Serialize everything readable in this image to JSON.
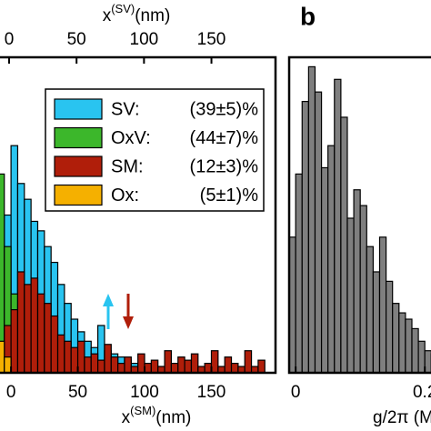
{
  "chart_data": [
    {
      "type": "histogram",
      "x_label": {
        "base": "x",
        "sup": "(SM)",
        "unit": "(nm)"
      },
      "top_x_label": {
        "base": "x",
        "sup": "(SV)",
        "unit": "(nm)"
      },
      "bins": [
        -10,
        -5,
        0,
        5,
        10,
        15,
        20,
        25,
        30,
        35,
        40,
        45,
        50,
        55,
        60,
        65,
        70,
        75,
        80,
        85,
        90,
        95,
        100,
        105,
        110,
        115,
        120,
        125,
        130,
        135,
        140,
        145,
        150,
        155,
        160,
        165,
        170,
        175,
        180,
        185,
        190
      ],
      "series": [
        {
          "name": "SV:",
          "share": "(39±5)%",
          "color": "#29c4f0",
          "values": [
            20,
            50,
            72,
            60,
            55,
            48,
            45,
            40,
            35,
            28,
            22,
            17,
            13,
            10,
            8,
            15,
            7,
            6,
            5,
            4,
            3,
            3,
            2,
            2,
            2,
            1,
            1,
            1,
            1,
            1,
            1,
            0,
            1,
            0,
            1,
            0,
            0,
            1,
            0,
            0
          ]
        },
        {
          "name": "OxV:",
          "share": "(44±7)%",
          "color": "#3cb72b",
          "values": [
            63,
            40,
            25,
            12,
            5,
            2,
            0,
            0,
            0,
            0,
            0,
            0,
            0,
            0,
            0,
            0,
            0,
            0,
            0,
            0,
            0,
            0,
            0,
            0,
            0,
            0,
            0,
            0,
            0,
            0,
            0,
            0,
            0,
            0,
            0,
            0,
            0,
            0,
            0,
            0
          ]
        },
        {
          "name": "SM:",
          "share": "(12±3)%",
          "color": "#b01e0a",
          "values": [
            8,
            15,
            20,
            32,
            28,
            30,
            25,
            22,
            18,
            12,
            10,
            8,
            10,
            5,
            6,
            4,
            9,
            5,
            3,
            5,
            2,
            6,
            3,
            4,
            2,
            7,
            3,
            5,
            4,
            6,
            2,
            3,
            7,
            2,
            5,
            3,
            2,
            7,
            2,
            4
          ]
        },
        {
          "name": "Ox:",
          "share": "(5±1)%",
          "color": "#f5b000",
          "values": [
            10,
            5,
            0,
            0,
            0,
            0,
            0,
            0,
            0,
            0,
            0,
            0,
            0,
            0,
            0,
            0,
            0,
            0,
            0,
            0,
            0,
            0,
            0,
            0,
            0,
            0,
            0,
            0,
            0,
            0,
            0,
            0,
            0,
            0,
            0,
            0,
            0,
            0,
            0,
            0
          ]
        }
      ],
      "xlim": [
        -9.6,
        198
      ],
      "xticks": [
        0,
        50,
        100,
        150
      ],
      "top_xlim": [
        -8.1,
        197.5
      ],
      "top_xticks": [
        0,
        50,
        100,
        150
      ],
      "ylim": [
        0,
        100
      ]
    },
    {
      "type": "histogram",
      "panel": "b",
      "x_label": "g/2π (M",
      "bins": [
        -0.01,
        0,
        0.01,
        0.02,
        0.03,
        0.04,
        0.05,
        0.06,
        0.07,
        0.08,
        0.09,
        0.1,
        0.11,
        0.12,
        0.13,
        0.14,
        0.15,
        0.16,
        0.17,
        0.18,
        0.19,
        0.2,
        0.21,
        0.22
      ],
      "values": [
        43,
        63,
        86,
        97,
        89,
        65,
        72,
        93,
        81,
        49,
        58,
        53,
        40,
        32,
        43,
        29,
        22,
        19,
        17,
        14,
        10,
        7,
        6
      ],
      "color": "#7f7f7f",
      "xlim": [
        -0.0101,
        0.2152
      ],
      "xticks": [
        0,
        {
          "value": 0.2,
          "label": "0.2"
        }
      ],
      "ylim": [
        0,
        100
      ]
    }
  ]
}
